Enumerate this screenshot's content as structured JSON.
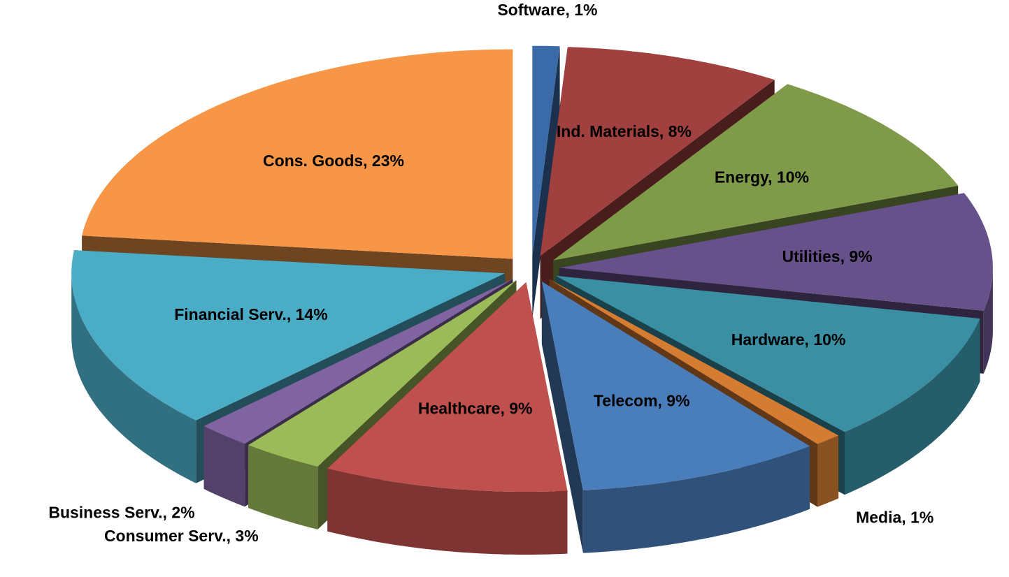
{
  "chart_data": {
    "type": "pie",
    "values": [
      1,
      8,
      10,
      9,
      10,
      1,
      9,
      9,
      3,
      2,
      14,
      23
    ],
    "value_labels": [
      "Software, 1%",
      "Ind. Materials, 8%",
      "Energy, 10%",
      "Utilities, 9%",
      "Hardware, 10%",
      "Media, 1%",
      "Telecom, 9%",
      "Healthcare, 9%",
      "Consumer Serv., 3%",
      "Business Serv., 2%",
      "Financial Serv., 14%",
      "Cons. Goods, 23%"
    ],
    "colors": [
      "#3a6aa8",
      "#a0403f",
      "#7f9a48",
      "#67518a",
      "#3a8fa3",
      "#d57c33",
      "#4a7ebb",
      "#c0504d",
      "#9bbb59",
      "#8064a2",
      "#4bacc6",
      "#f79646"
    ]
  }
}
